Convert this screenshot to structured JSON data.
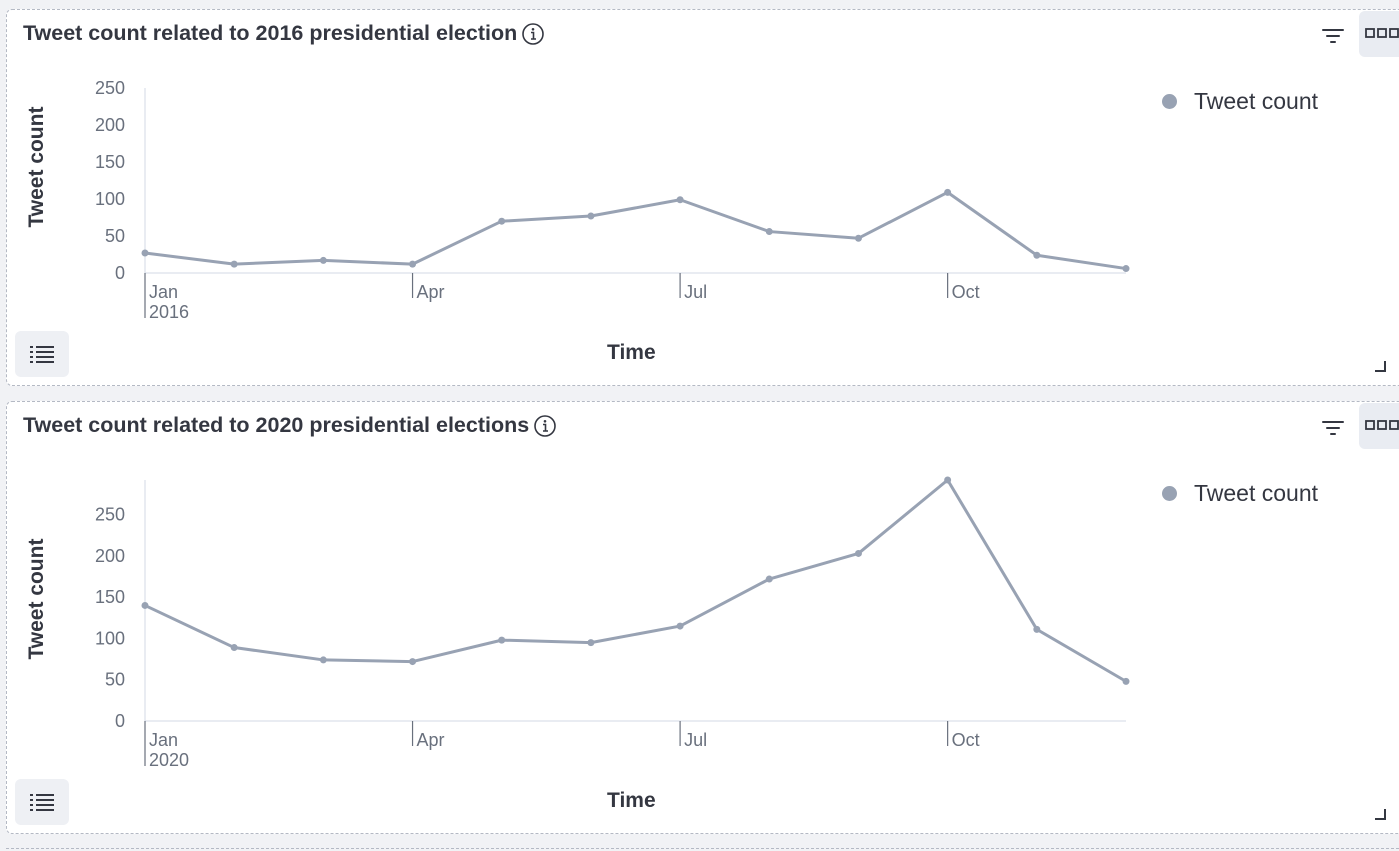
{
  "panels": [
    {
      "title": "Tweet count related to 2016 presidential election",
      "legend_label": "Tweet count",
      "y_axis_title": "Tweet count",
      "x_axis_title": "Time"
    },
    {
      "title": "Tweet count related to 2020 presidential elections",
      "legend_label": "Tweet count",
      "y_axis_title": "Tweet count",
      "x_axis_title": "Time"
    }
  ],
  "icons": {
    "info": "info-icon",
    "filter": "filter-icon",
    "menu": "options-menu-icon",
    "list": "list-icon",
    "resize": "resize-handle-icon"
  },
  "colors": {
    "series": "#98a2b3",
    "axis": "#d3dae6",
    "text": "#343741"
  },
  "chart_data": [
    {
      "type": "line",
      "title": "Tweet count related to 2016 presidential election",
      "xlabel": "Time",
      "ylabel": "Tweet count",
      "x": [
        "2016-01",
        "2016-02",
        "2016-03",
        "2016-04",
        "2016-05",
        "2016-06",
        "2016-07",
        "2016-08",
        "2016-09",
        "2016-10",
        "2016-11",
        "2016-12"
      ],
      "x_ticks": [
        {
          "label": "Jan",
          "sub": "2016",
          "month": 0
        },
        {
          "label": "Apr",
          "month": 3
        },
        {
          "label": "Jul",
          "month": 6
        },
        {
          "label": "Oct",
          "month": 9
        }
      ],
      "y_ticks": [
        0,
        50,
        100,
        150,
        200,
        250
      ],
      "ylim": [
        0,
        250
      ],
      "series": [
        {
          "name": "Tweet count",
          "values": [
            27,
            12,
            17,
            12,
            70,
            77,
            99,
            56,
            47,
            109,
            24,
            6
          ]
        }
      ],
      "legend": "top-right",
      "grid": false
    },
    {
      "type": "line",
      "title": "Tweet count related to 2020 presidential elections",
      "xlabel": "Time",
      "ylabel": "Tweet count",
      "x": [
        "2020-01",
        "2020-02",
        "2020-03",
        "2020-04",
        "2020-05",
        "2020-06",
        "2020-07",
        "2020-08",
        "2020-09",
        "2020-10",
        "2020-11",
        "2020-12"
      ],
      "x_ticks": [
        {
          "label": "Jan",
          "sub": "2020",
          "month": 0
        },
        {
          "label": "Apr",
          "month": 3
        },
        {
          "label": "Jul",
          "month": 6
        },
        {
          "label": "Oct",
          "month": 9
        }
      ],
      "y_ticks": [
        0,
        50,
        100,
        150,
        200,
        250
      ],
      "ylim": [
        0,
        292
      ],
      "series": [
        {
          "name": "Tweet count",
          "values": [
            140,
            89,
            74,
            72,
            98,
            95,
            115,
            172,
            203,
            292,
            111,
            48
          ]
        }
      ],
      "legend": "top-right",
      "grid": false
    }
  ]
}
